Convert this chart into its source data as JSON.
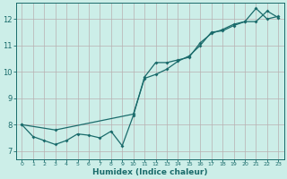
{
  "xlabel": "Humidex (Indice chaleur)",
  "bg_color": "#cceee8",
  "grid_color": "#b8b0b0",
  "line_color": "#1a6b6b",
  "xlim": [
    -0.5,
    23.5
  ],
  "ylim": [
    6.7,
    12.6
  ],
  "xticks": [
    0,
    1,
    2,
    3,
    4,
    5,
    6,
    7,
    8,
    9,
    10,
    11,
    12,
    13,
    14,
    15,
    16,
    17,
    18,
    19,
    20,
    21,
    22,
    23
  ],
  "yticks": [
    7,
    8,
    9,
    10,
    11,
    12
  ],
  "line1_x": [
    0,
    1,
    2,
    3,
    4,
    5,
    6,
    7,
    8,
    9,
    10,
    11,
    12,
    13,
    14,
    15,
    16,
    17,
    18,
    19,
    20,
    21,
    22,
    23
  ],
  "line1_y": [
    8.0,
    7.55,
    7.4,
    7.25,
    7.4,
    7.65,
    7.6,
    7.5,
    7.75,
    7.2,
    8.35,
    9.8,
    10.35,
    10.35,
    10.45,
    10.55,
    11.1,
    11.45,
    11.6,
    11.8,
    11.9,
    12.4,
    12.0,
    12.1
  ],
  "line2_x": [
    0,
    3,
    10,
    11,
    12,
    13,
    14,
    15,
    16,
    17,
    18,
    19,
    20,
    21,
    22,
    23
  ],
  "line2_y": [
    8.0,
    7.8,
    8.4,
    9.75,
    9.9,
    10.1,
    10.4,
    10.6,
    11.0,
    11.5,
    11.55,
    11.75,
    11.9,
    11.9,
    12.3,
    12.05
  ]
}
